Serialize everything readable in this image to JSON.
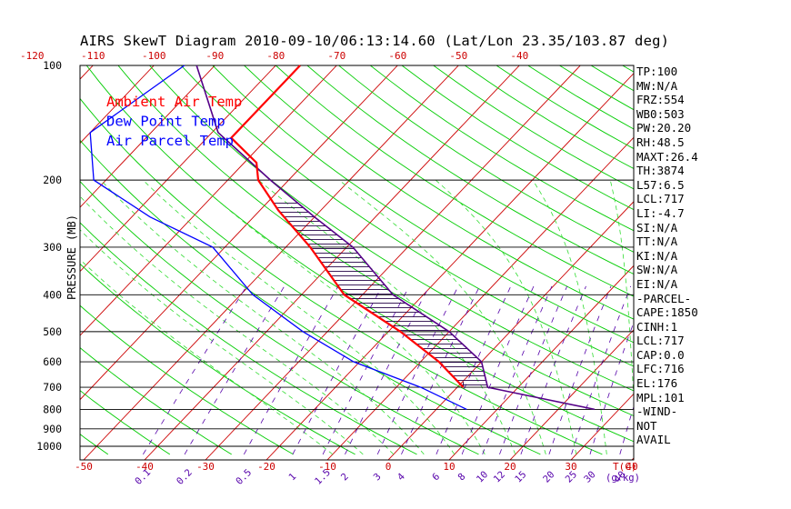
{
  "colors": {
    "frame": "#000000",
    "isotherm": "#cc0000",
    "dry_adiabat": "#00cc00",
    "moist_adiabat": "#33dd33",
    "mixing_ratio": "#5500aa",
    "ambient": "#ff0000",
    "dewpoint": "#0000ff",
    "parcel": "#550088",
    "hatch": "#220044"
  },
  "chart_data": {
    "type": "skewt",
    "title": "AIRS SkewT Diagram 2010-09-10/06:13:14.60 (Lat/Lon 23.35/103.87 deg)",
    "ylabel": "PRESSURE (MB)",
    "bottom_axis_label": "T(C)",
    "mixing_ratio_axis_label": "(g/kg)",
    "pressure_ticks": [
      1000,
      900,
      800,
      700,
      600,
      500,
      400,
      300,
      200,
      100
    ],
    "temperature_ticks_bottom": [
      -50,
      -40,
      -30,
      -20,
      -10,
      0,
      10,
      20,
      30,
      40
    ],
    "temperature_ticks_top": [
      -120,
      -110,
      -100,
      -90,
      -80,
      -70,
      -60,
      -50,
      -40
    ],
    "mixing_ratio_ticks": [
      "0.1",
      "0.2",
      "0.5",
      "1",
      "1.5",
      "2",
      "3",
      "4",
      "6",
      "8",
      "10",
      "12",
      "15",
      "20",
      "25",
      "30",
      "40"
    ],
    "legend": [
      "Ambient Air Temp",
      "Dew Point Temp",
      "Air Parcel Temp"
    ],
    "series": [
      {
        "name": "Ambient Air Temp",
        "points": [
          [
            100,
            -76
          ],
          [
            155,
            -76
          ],
          [
            180,
            -68
          ],
          [
            200,
            -65
          ],
          [
            240,
            -57
          ],
          [
            300,
            -46
          ],
          [
            400,
            -33
          ],
          [
            500,
            -18
          ],
          [
            600,
            -7
          ],
          [
            700,
            1
          ]
        ]
      },
      {
        "name": "Dew Point Temp",
        "points": [
          [
            100,
            -95
          ],
          [
            150,
            -100
          ],
          [
            200,
            -92
          ],
          [
            250,
            -77
          ],
          [
            300,
            -62
          ],
          [
            400,
            -48
          ],
          [
            500,
            -34
          ],
          [
            600,
            -21
          ],
          [
            700,
            -6
          ],
          [
            800,
            5
          ]
        ]
      },
      {
        "name": "Air Parcel Temp",
        "points": [
          [
            100,
            -93
          ],
          [
            150,
            -79
          ],
          [
            200,
            -63
          ],
          [
            250,
            -50
          ],
          [
            300,
            -39
          ],
          [
            400,
            -25
          ],
          [
            500,
            -10
          ],
          [
            600,
            0
          ],
          [
            700,
            5
          ],
          [
            800,
            26
          ]
        ]
      }
    ]
  },
  "stats": [
    "TP:100",
    "MW:N/A",
    "FRZ:554",
    "WB0:503",
    "PW:20.20",
    "RH:48.5",
    "MAXT:26.4",
    "TH:3874",
    "L57:6.5",
    "LCL:717",
    "LI:-4.7",
    "SI:N/A",
    "TT:N/A",
    "KI:N/A",
    "SW:N/A",
    "EI:N/A",
    "-PARCEL-",
    "CAPE:1850",
    "CINH:1",
    "LCL:717",
    "CAP:0.0",
    "LFC:716",
    "EL:176",
    "MPL:101",
    "-WIND-",
    "NOT",
    "AVAIL"
  ]
}
